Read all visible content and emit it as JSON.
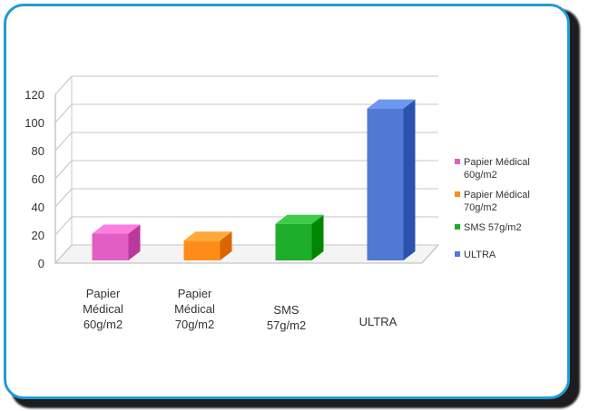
{
  "chart_data": {
    "type": "bar",
    "style": "3d-column",
    "categories": [
      [
        "Papier",
        "Médical",
        "60g/m2"
      ],
      [
        "Papier",
        "Médical",
        "70g/m2"
      ],
      [
        "SMS",
        "57g/m2"
      ],
      [
        "ULTRA"
      ]
    ],
    "values": [
      19,
      14,
      26,
      108
    ],
    "colors": [
      "#e05fc1",
      "#ff8c1a",
      "#1fae2b",
      "#4f79d3"
    ],
    "y_ticks": [
      "120",
      "100",
      "80",
      "60",
      "40",
      "20",
      "0"
    ],
    "ylim": [
      0,
      120
    ],
    "grid": true,
    "legend": {
      "placement": "right",
      "items": [
        {
          "lines": [
            "Papier Médical",
            "60g/m2"
          ],
          "color": "#e05fc1"
        },
        {
          "lines": [
            "Papier Médical",
            "70g/m2"
          ],
          "color": "#ff8c1a"
        },
        {
          "lines": [
            "SMS 57g/m2"
          ],
          "color": "#1fae2b"
        },
        {
          "lines": [
            "ULTRA"
          ],
          "color": "#4f79d3"
        }
      ]
    },
    "frame_color": "#1e9bd7"
  }
}
